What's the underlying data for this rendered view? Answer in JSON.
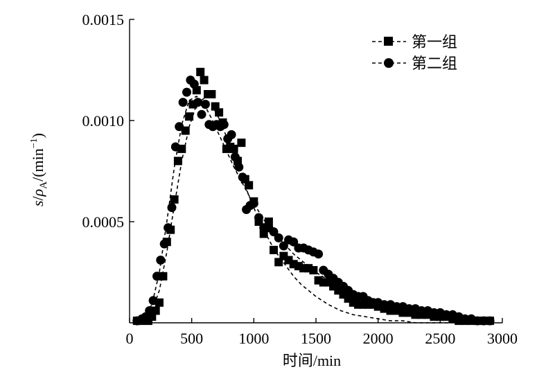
{
  "chart_data": {
    "type": "scatter",
    "ylabel_parts": {
      "s": "s",
      "slash1": "/",
      "rho": "ρ",
      "sub": "A",
      "slash2": "/",
      "unit_open": "(min",
      "unit_sup": "−1",
      "unit_close": ")"
    },
    "xlabel": "时间/min",
    "xlim": [
      0,
      3000
    ],
    "ylim": [
      0,
      0.0015
    ],
    "xticks": [
      0,
      500,
      1000,
      1500,
      2000,
      2500,
      3000
    ],
    "xtick_labels": [
      "0",
      "500",
      "1000",
      "1500",
      "2000",
      "2500",
      "3000"
    ],
    "yticks": [
      0.0005,
      0.001,
      0.0015
    ],
    "ytick_labels": [
      "0.0005",
      "0.0010",
      "0.0015"
    ],
    "legend_position": "top-right",
    "series": [
      {
        "name": "第一组",
        "marker": "square",
        "color": "#000000",
        "x": [
          60,
          90,
          120,
          150,
          180,
          210,
          240,
          270,
          300,
          330,
          360,
          390,
          420,
          450,
          480,
          510,
          540,
          570,
          600,
          630,
          660,
          690,
          720,
          750,
          780,
          810,
          840,
          870,
          900,
          930,
          960,
          1000,
          1040,
          1080,
          1120,
          1160,
          1200,
          1240,
          1280,
          1320,
          1360,
          1400,
          1440,
          1480,
          1520,
          1560,
          1600,
          1640,
          1680,
          1720,
          1760,
          1800,
          1840,
          1880,
          1920,
          1960,
          2000,
          2050,
          2100,
          2150,
          2200,
          2250,
          2300,
          2350,
          2400,
          2450,
          2500,
          2550,
          2600,
          2650,
          2700,
          2750,
          2800,
          2850,
          2900
        ],
        "y": [
          1e-05,
          1e-05,
          2e-05,
          1e-05,
          3e-05,
          6e-05,
          0.0001,
          0.00023,
          0.0004,
          0.00046,
          0.00061,
          0.0008,
          0.00086,
          0.00095,
          0.00102,
          0.00108,
          0.00115,
          0.00124,
          0.0012,
          0.00113,
          0.00113,
          0.00107,
          0.00104,
          0.00099,
          0.00086,
          0.00087,
          0.00086,
          0.0008,
          0.00089,
          0.00071,
          0.00068,
          0.0006,
          0.0005,
          0.00044,
          0.0005,
          0.00036,
          0.0003,
          0.00033,
          0.00031,
          0.00029,
          0.00028,
          0.00027,
          0.00027,
          0.00026,
          0.00021,
          0.0002,
          0.0002,
          0.00018,
          0.00016,
          0.00014,
          0.00012,
          0.0001,
          9e-05,
          9e-05,
          9e-05,
          9e-05,
          8e-05,
          7e-05,
          6e-05,
          6e-05,
          5e-05,
          5e-05,
          4e-05,
          4e-05,
          4e-05,
          3e-05,
          3e-05,
          3e-05,
          2e-05,
          1e-05,
          1e-05,
          1e-05,
          1e-05,
          1e-05,
          1e-05
        ]
      },
      {
        "name": "第二组",
        "marker": "circle",
        "color": "#000000",
        "x": [
          60,
          100,
          130,
          160,
          190,
          220,
          250,
          280,
          310,
          340,
          370,
          400,
          430,
          460,
          490,
          520,
          550,
          580,
          610,
          640,
          670,
          700,
          730,
          760,
          790,
          820,
          850,
          880,
          910,
          940,
          970,
          1000,
          1040,
          1080,
          1120,
          1160,
          1200,
          1240,
          1280,
          1320,
          1360,
          1400,
          1440,
          1480,
          1520,
          1560,
          1600,
          1640,
          1680,
          1720,
          1760,
          1800,
          1840,
          1880,
          1920,
          1960,
          2000,
          2050,
          2100,
          2150,
          2200,
          2250,
          2300,
          2350,
          2400,
          2450,
          2500,
          2550,
          2600,
          2650,
          2700,
          2750,
          2800,
          2850,
          2900
        ],
        "y": [
          1e-05,
          2e-05,
          3e-05,
          6e-05,
          0.00011,
          0.00023,
          0.00031,
          0.00039,
          0.00047,
          0.00057,
          0.00087,
          0.00097,
          0.00109,
          0.00114,
          0.0012,
          0.00118,
          0.00109,
          0.00103,
          0.00108,
          0.00098,
          0.00097,
          0.00098,
          0.00097,
          0.00098,
          0.00091,
          0.00093,
          0.00082,
          0.00077,
          0.00072,
          0.00056,
          0.00058,
          0.00059,
          0.00052,
          0.00047,
          0.00047,
          0.00045,
          0.00042,
          0.00038,
          0.00041,
          0.0004,
          0.00037,
          0.00037,
          0.00036,
          0.00035,
          0.00034,
          0.00026,
          0.00024,
          0.00022,
          0.0002,
          0.00018,
          0.00016,
          0.00014,
          0.00013,
          0.00013,
          0.00011,
          0.0001,
          0.0001,
          9e-05,
          9e-05,
          8e-05,
          8e-05,
          7e-05,
          7e-05,
          6e-05,
          6e-05,
          5e-05,
          5e-05,
          4e-05,
          4e-05,
          3e-05,
          2e-05,
          2e-05,
          1e-05,
          1e-05,
          1e-05
        ]
      }
    ],
    "fit_curves": [
      {
        "series": "第一组",
        "line": "dashed",
        "x": [
          60,
          120,
          180,
          240,
          300,
          360,
          420,
          480,
          540,
          600,
          660,
          720,
          780,
          840,
          900,
          960,
          1020,
          1080,
          1140,
          1200,
          1260,
          1320,
          1380,
          1440,
          1500,
          1600,
          1700,
          1800,
          1900,
          2000,
          2100,
          2200,
          2300,
          2400,
          2500,
          2600,
          2700,
          2800,
          2900
        ],
        "y": [
          1e-05,
          2e-05,
          6e-05,
          0.00016,
          0.00035,
          0.00058,
          0.0008,
          0.00097,
          0.00108,
          0.00111,
          0.00108,
          0.00101,
          0.00092,
          0.00082,
          0.00072,
          0.00063,
          0.00054,
          0.00046,
          0.00039,
          0.00033,
          0.00028,
          0.00023,
          0.00019,
          0.00016,
          0.00013,
          9e-05,
          6e-05,
          4e-05,
          3e-05,
          2e-05,
          1e-05,
          1e-05,
          0.0,
          0.0,
          0.0,
          0.0,
          0.0,
          0.0,
          0.0
        ]
      },
      {
        "series": "第二组",
        "line": "dashed",
        "x": [
          60,
          120,
          180,
          240,
          300,
          360,
          420,
          480,
          540,
          600,
          660,
          720,
          780,
          840,
          900,
          960,
          1020,
          1080,
          1140,
          1200,
          1260,
          1320,
          1380,
          1440,
          1500,
          1600,
          1700,
          1800,
          1900,
          2000,
          2100,
          2200,
          2300,
          2400,
          2500,
          2600,
          2700,
          2800,
          2900
        ],
        "y": [
          1e-05,
          3e-05,
          9e-05,
          0.00025,
          0.0005,
          0.00077,
          0.00098,
          0.0011,
          0.00112,
          0.00108,
          0.00101,
          0.00093,
          0.00085,
          0.00077,
          0.0007,
          0.00063,
          0.00057,
          0.00051,
          0.00046,
          0.00042,
          0.00038,
          0.00034,
          0.00031,
          0.00028,
          0.00025,
          0.00021,
          0.00017,
          0.00014,
          0.00011,
          9e-05,
          7e-05,
          5e-05,
          4e-05,
          3e-05,
          2e-05,
          2e-05,
          1e-05,
          1e-05,
          0.0
        ]
      }
    ]
  }
}
